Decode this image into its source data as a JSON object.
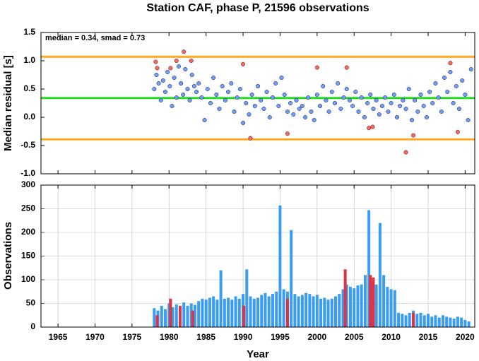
{
  "chart_data": [
    {
      "type": "scatter",
      "title": "Station CAF, phase P, 21596 observations",
      "ylabel": "Median residual [s]",
      "annotation": "median = 0.34, smad = 0.73",
      "xlim": [
        1962.7,
        2021.3
      ],
      "xticks": [
        1965,
        1970,
        1975,
        1980,
        1985,
        1990,
        1995,
        2000,
        2005,
        2010,
        2015,
        2020
      ],
      "ylim": [
        -1,
        1.5
      ],
      "yticks": [
        {
          "value": -1,
          "label": "-1.0"
        },
        -0.5,
        {
          "value": 0,
          "label": "0.0"
        },
        0.5,
        {
          "value": 1,
          "label": "1.0"
        },
        1.5
      ],
      "reference_lines": [
        {
          "value": 1.07,
          "color": "#ffaa22"
        },
        {
          "value": 0.34,
          "color": "#22dd22"
        },
        {
          "value": -0.39,
          "color": "#ffaa22"
        }
      ],
      "series": [
        {
          "color": "#6f9cf6",
          "x": [
            1978.0,
            1978.3,
            1978.6,
            1978.9,
            1979.2,
            1979.5,
            1979.8,
            1980.1,
            1980.4,
            1980.7,
            1981.0,
            1981.3,
            1981.6,
            1981.9,
            1982.2,
            1982.5,
            1982.8,
            1983.1,
            1983.4,
            1983.7,
            1984.0,
            1984.4,
            1984.8,
            1985.2,
            1985.6,
            1986.0,
            1986.4,
            1986.8,
            1987.2,
            1987.6,
            1988.0,
            1988.4,
            1988.8,
            1989.2,
            1989.6,
            1990.0,
            1990.4,
            1990.8,
            1991.2,
            1991.6,
            1992.0,
            1992.4,
            1992.8,
            1993.2,
            1993.6,
            1994.0,
            1994.4,
            1994.8,
            1995.2,
            1995.6,
            1996.0,
            1996.4,
            1996.8,
            1997.2,
            1997.6,
            1998.0,
            1998.4,
            1998.8,
            1999.2,
            1999.6,
            2000.0,
            2000.4,
            2000.8,
            2001.2,
            2001.6,
            2002.0,
            2002.4,
            2002.8,
            2003.2,
            2003.6,
            2004.0,
            2004.4,
            2004.8,
            2005.2,
            2005.6,
            2006.0,
            2006.4,
            2006.8,
            2007.2,
            2007.6,
            2008.0,
            2008.4,
            2008.8,
            2009.2,
            2009.6,
            2010.0,
            2010.4,
            2010.8,
            2011.2,
            2011.6,
            2012.0,
            2012.4,
            2012.8,
            2013.2,
            2013.6,
            2014.0,
            2014.4,
            2014.8,
            2015.2,
            2015.6,
            2016.0,
            2016.4,
            2016.8,
            2017.2,
            2017.6,
            2018.0,
            2018.4,
            2018.8,
            2019.2,
            2019.6,
            2020.0,
            2020.4,
            2020.8
          ],
          "values": [
            0.5,
            0.75,
            0.6,
            0.3,
            0.65,
            0.45,
            0.8,
            0.55,
            0.2,
            0.7,
            0.35,
            0.9,
            0.6,
            0.4,
            0.85,
            0.5,
            0.3,
            0.75,
            0.55,
            0.45,
            0.6,
            0.35,
            -0.05,
            0.5,
            0.25,
            0.7,
            0.4,
            0.15,
            0.55,
            0.3,
            0.45,
            0.6,
            0.1,
            0.35,
            0.5,
            -0.1,
            0.25,
            0.05,
            0.4,
            0.2,
            0.55,
            0.3,
            0.15,
            0.45,
            0.0,
            0.35,
            0.6,
            0.2,
            0.7,
            0.4,
            0.1,
            0.25,
            0.05,
            0.3,
            0.15,
            0.2,
            0.0,
            0.35,
            0.1,
            -0.05,
            0.4,
            0.2,
            0.55,
            0.3,
            0.1,
            0.45,
            0.25,
            0.6,
            0.15,
            0.35,
            0.5,
            0.3,
            0.2,
            0.45,
            0.1,
            0.35,
            0.0,
            0.25,
            0.4,
            0.15,
            0.3,
            0.05,
            0.2,
            0.35,
            0.1,
            0.25,
            0.4,
            0.0,
            0.2,
            0.3,
            0.15,
            0.5,
            -0.05,
            0.3,
            0.1,
            0.4,
            0.2,
            0.0,
            0.45,
            0.25,
            0.6,
            0.35,
            0.1,
            0.7,
            0.45,
            0.8,
            0.25,
            0.55,
            0.15,
            0.65,
            0.4,
            -0.05,
            0.85
          ]
        },
        {
          "color": "#ff6655",
          "x": [
            1978.2,
            1978.4,
            1980.2,
            1981.0,
            1982.0,
            1983.0,
            1990.0,
            1991.0,
            1996.0,
            2000.0,
            2004.0,
            2007.0,
            2007.5,
            2012.0,
            2013.0,
            2018.0,
            2019.0
          ],
          "values": [
            0.98,
            0.87,
            0.87,
            1.0,
            1.16,
            1.0,
            0.94,
            -0.37,
            -0.29,
            0.88,
            0.88,
            -0.19,
            -0.17,
            -0.62,
            -0.32,
            0.96,
            -0.26
          ]
        }
      ]
    },
    {
      "type": "bar",
      "ylabel": "Observations",
      "xlabel": "Year",
      "xlim": [
        1962.7,
        2021.3
      ],
      "xticks": [
        1965,
        1970,
        1975,
        1980,
        1985,
        1990,
        1995,
        2000,
        2005,
        2010,
        2015,
        2020
      ],
      "ylim": [
        0,
        300
      ],
      "yticks": [
        0,
        50,
        100,
        150,
        200,
        250,
        300
      ],
      "grid": true,
      "series": [
        {
          "color": "#3b9cf4",
          "x": [
            1978.0,
            1978.5,
            1979.0,
            1979.5,
            1980.0,
            1980.5,
            1981.0,
            1981.5,
            1982.0,
            1982.5,
            1983.0,
            1983.5,
            1984.0,
            1984.5,
            1985.0,
            1985.5,
            1986.0,
            1986.5,
            1987.0,
            1987.5,
            1988.0,
            1988.5,
            1989.0,
            1989.5,
            1990.0,
            1990.5,
            1991.0,
            1991.5,
            1992.0,
            1992.5,
            1993.0,
            1993.5,
            1994.0,
            1994.5,
            1995.0,
            1995.5,
            1996.0,
            1996.5,
            1997.0,
            1997.5,
            1998.0,
            1998.5,
            1999.0,
            1999.5,
            2000.0,
            2000.5,
            2001.0,
            2001.5,
            2002.0,
            2002.5,
            2003.0,
            2003.5,
            2004.0,
            2004.5,
            2005.0,
            2005.5,
            2006.0,
            2006.5,
            2007.0,
            2007.5,
            2008.0,
            2008.5,
            2009.0,
            2009.5,
            2010.0,
            2010.5,
            2011.0,
            2011.5,
            2012.0,
            2012.5,
            2013.0,
            2013.5,
            2014.0,
            2014.5,
            2015.0,
            2015.5,
            2016.0,
            2016.5,
            2017.0,
            2017.5,
            2018.0,
            2018.5,
            2019.0,
            2019.5,
            2020.0,
            2020.5
          ],
          "values": [
            40,
            35,
            45,
            38,
            50,
            42,
            48,
            40,
            52,
            45,
            50,
            47,
            55,
            60,
            58,
            62,
            65,
            58,
            120,
            60,
            62,
            58,
            65,
            60,
            70,
            122,
            65,
            60,
            62,
            68,
            72,
            65,
            70,
            75,
            257,
            80,
            75,
            205,
            70,
            65,
            68,
            72,
            70,
            65,
            68,
            60,
            62,
            58,
            60,
            65,
            70,
            80,
            90,
            85,
            82,
            88,
            90,
            110,
            247,
            95,
            90,
            220,
            110,
            85,
            80,
            78,
            30,
            28,
            25,
            30,
            35,
            28,
            30,
            25,
            28,
            22,
            25,
            20,
            25,
            22,
            20,
            18,
            22,
            20,
            15,
            12
          ]
        },
        {
          "color": "#dd3344",
          "x": [
            1978.4,
            1980.2,
            1981.5,
            1983.2,
            1990.1,
            1996.0,
            2003.8,
            2007.2,
            2007.6,
            2013.0
          ],
          "values": [
            25,
            60,
            45,
            35,
            45,
            60,
            122,
            110,
            105,
            30
          ]
        }
      ]
    }
  ]
}
